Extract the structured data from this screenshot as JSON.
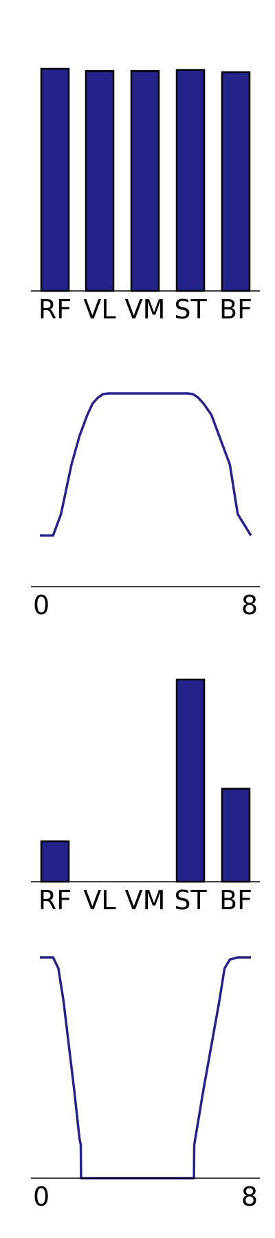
{
  "colors": {
    "bar_fill": "#23238a",
    "bar_edge": "#000000",
    "line": "#23238a",
    "axis": "#000000"
  },
  "chart_data": [
    {
      "type": "bar",
      "categories": [
        "RF",
        "VL",
        "VM",
        "ST",
        "BF"
      ],
      "values": [
        1.0,
        0.99,
        0.99,
        0.995,
        0.985
      ],
      "ylim": [
        0,
        1.0
      ]
    },
    {
      "type": "line",
      "xlim": [
        0,
        8
      ],
      "xtick_labels": [
        "0",
        "8"
      ],
      "ylim": [
        -0.36,
        1.0
      ],
      "series": [
        {
          "x": [
            0,
            0.5,
            0.8,
            1.2,
            1.5,
            1.8,
            2.0,
            2.2,
            2.4,
            2.6,
            2.8,
            3.0,
            3.5,
            4.0,
            4.5,
            5.0,
            5.4,
            5.6,
            5.8,
            6.0,
            6.2,
            6.5,
            6.8,
            7.2,
            7.5,
            8.0
          ],
          "y": [
            0.0,
            0.0,
            0.15,
            0.5,
            0.7,
            0.85,
            0.93,
            0.97,
            0.995,
            1.0,
            1.0,
            1.0,
            1.0,
            1.0,
            1.0,
            1.0,
            1.0,
            1.0,
            0.995,
            0.97,
            0.93,
            0.85,
            0.7,
            0.5,
            0.15,
            0.0
          ]
        }
      ]
    },
    {
      "type": "bar",
      "categories": [
        "RF",
        "VL",
        "VM",
        "ST",
        "BF"
      ],
      "values": [
        0.2,
        0.0,
        0.0,
        1.0,
        0.46
      ],
      "ylim": [
        0,
        1.0
      ]
    },
    {
      "type": "line",
      "xlim": [
        0,
        8
      ],
      "xtick_labels": [
        "0",
        "8"
      ],
      "ylim": [
        0,
        1.0
      ],
      "series": [
        {
          "x": [
            0,
            0.5,
            0.7,
            0.9,
            1.1,
            1.3,
            1.5,
            1.55,
            1.56,
            2.0,
            3.0,
            4.0,
            5.0,
            5.8,
            5.84,
            5.85,
            6.2,
            6.5,
            6.8,
            7.0,
            7.2,
            7.5,
            8.0
          ],
          "y": [
            1.0,
            1.0,
            0.95,
            0.8,
            0.6,
            0.4,
            0.18,
            0.15,
            0.0,
            0.0,
            0.0,
            0.0,
            0.0,
            0.0,
            0.0,
            0.15,
            0.4,
            0.6,
            0.8,
            0.95,
            0.99,
            1.0,
            1.0
          ]
        }
      ]
    }
  ]
}
